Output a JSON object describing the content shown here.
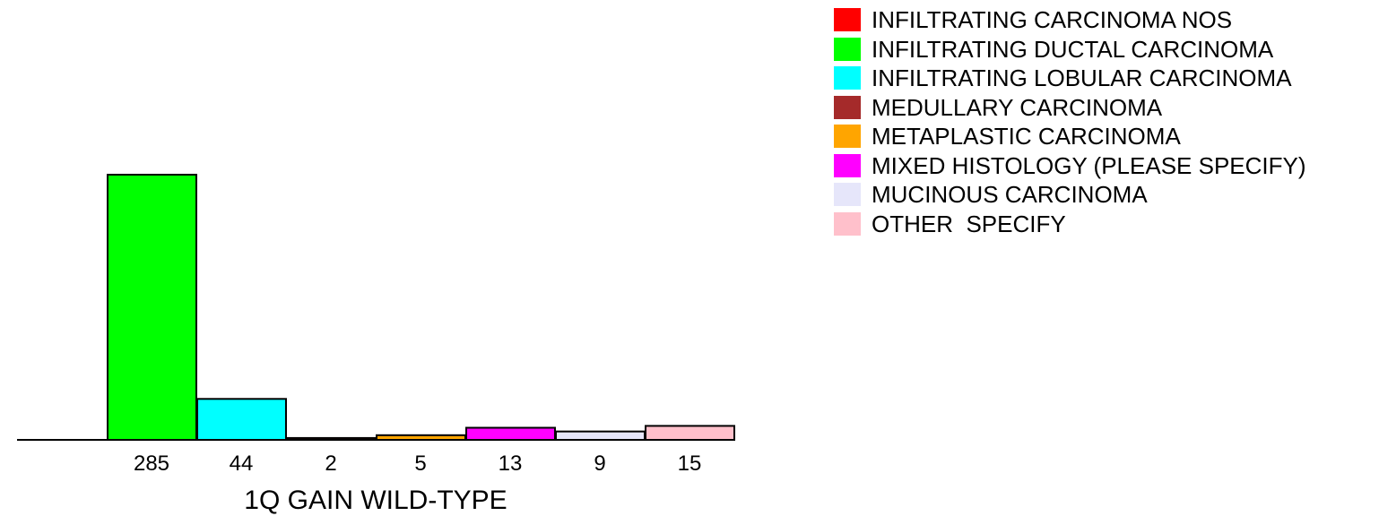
{
  "chart_data": {
    "type": "bar",
    "xlabel": "1Q GAIN WILD-TYPE",
    "ylabel": "",
    "ylim": [
      0,
      285
    ],
    "grid": false,
    "legend_position": "top-right",
    "categories": [
      "INFILTRATING CARCINOMA NOS",
      "INFILTRATING DUCTAL CARCINOMA",
      "INFILTRATING LOBULAR CARCINOMA",
      "MEDULLARY CARCINOMA",
      "METAPLASTIC CARCINOMA",
      "MIXED HISTOLOGY (PLEASE SPECIFY)",
      "MUCINOUS CARCINOMA",
      "OTHER  SPECIFY"
    ],
    "colors": [
      "#ff0000",
      "#00ff00",
      "#00ffff",
      "#a52a2a",
      "#ffa500",
      "#ff00ff",
      "#e6e6fa",
      "#ffc0cb"
    ],
    "values": [
      0,
      285,
      44,
      2,
      5,
      13,
      9,
      15
    ],
    "data_labels": [
      "",
      "285",
      "44",
      "2",
      "5",
      "13",
      "9",
      "15"
    ]
  }
}
